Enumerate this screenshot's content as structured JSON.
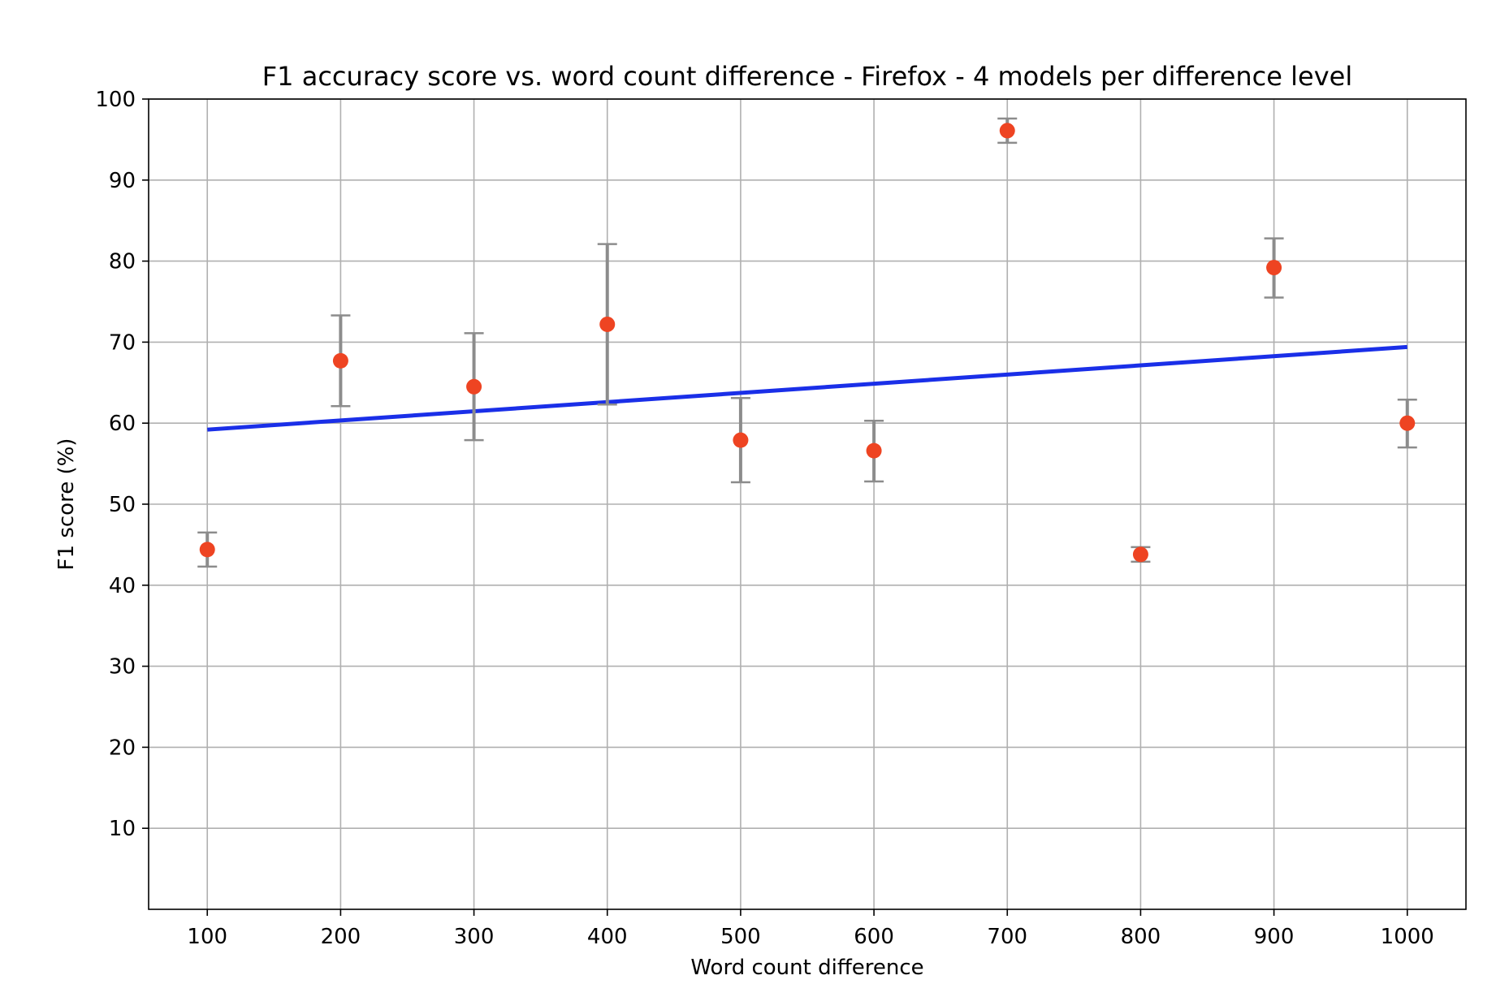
{
  "chart_data": {
    "type": "scatter",
    "title": "F1 accuracy score vs. word count difference - Firefox - 4 models per difference level",
    "xlabel": "Word count difference",
    "ylabel": "F1 score (%)",
    "xlim": [
      56,
      1044
    ],
    "ylim": [
      0,
      100
    ],
    "x_ticks": [
      100,
      200,
      300,
      400,
      500,
      600,
      700,
      800,
      900,
      1000
    ],
    "y_ticks": [
      10,
      20,
      30,
      40,
      50,
      60,
      70,
      80,
      90,
      100
    ],
    "grid": true,
    "points": [
      {
        "x": 100,
        "y": 44.4,
        "err_low": 42.3,
        "err_high": 46.5
      },
      {
        "x": 200,
        "y": 67.7,
        "err_low": 62.1,
        "err_high": 73.3
      },
      {
        "x": 300,
        "y": 64.5,
        "err_low": 57.9,
        "err_high": 71.1
      },
      {
        "x": 400,
        "y": 72.2,
        "err_low": 62.3,
        "err_high": 82.1
      },
      {
        "x": 500,
        "y": 57.9,
        "err_low": 52.7,
        "err_high": 63.1
      },
      {
        "x": 600,
        "y": 56.6,
        "err_low": 52.8,
        "err_high": 60.3
      },
      {
        "x": 700,
        "y": 96.1,
        "err_low": 94.6,
        "err_high": 97.6
      },
      {
        "x": 800,
        "y": 43.8,
        "err_low": 42.9,
        "err_high": 44.7
      },
      {
        "x": 900,
        "y": 79.2,
        "err_low": 75.5,
        "err_high": 82.8
      },
      {
        "x": 1000,
        "y": 60.0,
        "err_low": 57.0,
        "err_high": 62.9
      }
    ],
    "trend_line": {
      "x": [
        100,
        1000
      ],
      "y": [
        59.2,
        69.4
      ]
    },
    "colors": {
      "points": "#ee4422",
      "error_bars": "#8c8c8c",
      "trend": "#1a2fe8",
      "grid": "#b0b0b0"
    }
  }
}
